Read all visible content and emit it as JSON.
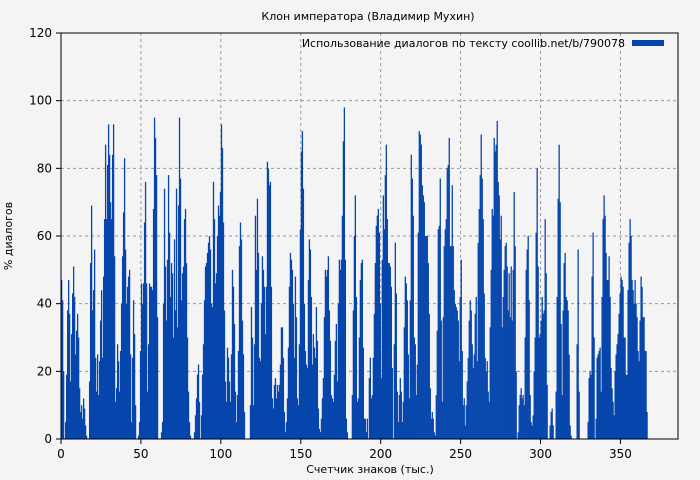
{
  "chart_data": {
    "type": "bar",
    "title": "Клон императора (Владимир Мухин)",
    "xlabel": "Счетчик знаков (тыс.)",
    "ylabel": "% диалогов",
    "xlim": [
      0,
      386
    ],
    "ylim": [
      0,
      120
    ],
    "x_step": 0.625,
    "xticks": [
      0,
      50,
      100,
      150,
      200,
      250,
      300,
      350
    ],
    "yticks": [
      0,
      20,
      40,
      60,
      80,
      100,
      120
    ],
    "grid": true,
    "legend_position": "top-right",
    "series": [
      {
        "name": "Использование диалогов по тексту coollib.net/b/790078",
        "color": "#0646ac",
        "values": [
          47,
          41,
          20,
          0,
          5,
          19,
          38,
          47,
          37,
          17,
          31,
          43,
          51,
          42,
          25,
          32,
          37,
          30,
          15,
          8,
          10,
          6,
          12,
          9,
          4,
          1,
          0,
          0,
          17,
          52,
          69,
          38,
          44,
          56,
          24,
          14,
          25,
          13,
          23,
          35,
          44,
          24,
          48,
          65,
          87,
          65,
          81,
          93,
          84,
          70,
          65,
          84,
          93,
          54,
          11,
          15,
          28,
          23,
          14,
          26,
          40,
          54,
          67,
          83,
          56,
          40,
          45,
          48,
          50,
          25,
          5,
          24,
          41,
          31,
          10,
          0,
          0,
          1,
          5,
          26,
          46,
          40,
          46,
          64,
          76,
          46,
          14,
          28,
          46,
          45,
          45,
          44,
          68,
          95,
          89,
          78,
          36,
          0,
          0,
          0,
          2,
          5,
          40,
          74,
          51,
          35,
          53,
          78,
          61,
          42,
          52,
          49,
          30,
          59,
          38,
          74,
          33,
          69,
          95,
          77,
          41,
          49,
          51,
          65,
          68,
          52,
          30,
          14,
          5,
          1,
          0,
          0,
          0,
          2,
          7,
          12,
          19,
          22,
          11,
          0,
          7,
          19,
          28,
          41,
          51,
          52,
          55,
          58,
          60,
          56,
          40,
          39,
          76,
          65,
          46,
          49,
          60,
          69,
          66,
          73,
          93,
          86,
          64,
          38,
          17,
          11,
          27,
          24,
          17,
          11,
          25,
          50,
          45,
          34,
          14,
          5,
          13,
          26,
          57,
          64,
          59,
          35,
          25,
          8,
          0,
          0,
          0,
          0,
          0,
          10,
          39,
          30,
          10,
          28,
          66,
          50,
          71,
          55,
          24,
          23,
          40,
          54,
          50,
          45,
          31,
          45,
          82,
          80,
          75,
          76,
          45,
          12,
          9,
          16,
          18,
          12,
          16,
          14,
          16,
          22,
          33,
          33,
          24,
          8,
          2,
          5,
          12,
          27,
          45,
          55,
          53,
          50,
          40,
          24,
          48,
          36,
          12,
          10,
          28,
          62,
          85,
          91,
          74,
          40,
          26,
          22,
          21,
          47,
          59,
          56,
          42,
          22,
          31,
          27,
          24,
          39,
          29,
          9,
          3,
          2,
          6,
          12,
          18,
          36,
          50,
          48,
          50,
          54,
          38,
          29,
          13,
          12,
          11,
          19,
          29,
          34,
          17,
          40,
          53,
          50,
          53,
          66,
          88,
          98,
          53,
          6,
          2,
          0,
          0,
          0,
          0,
          13,
          38,
          60,
          72,
          42,
          11,
          12,
          30,
          47,
          52,
          53,
          27,
          6,
          6,
          2,
          6,
          0,
          18,
          24,
          12,
          13,
          24,
          37,
          52,
          63,
          66,
          68,
          61,
          40,
          18,
          53,
          72,
          62,
          78,
          87,
          65,
          52,
          52,
          51,
          45,
          21,
          0,
          28,
          58,
          43,
          14,
          5,
          13,
          18,
          14,
          5,
          11,
          33,
          48,
          46,
          41,
          25,
          12,
          41,
          84,
          77,
          66,
          30,
          28,
          13,
          22,
          61,
          91,
          90,
          87,
          75,
          72,
          70,
          60,
          60,
          60,
          52,
          37,
          15,
          6,
          8,
          6,
          2,
          1,
          13,
          32,
          62,
          63,
          77,
          35,
          11,
          36,
          57,
          62,
          65,
          80,
          81,
          89,
          57,
          57,
          75,
          57,
          44,
          40,
          39,
          38,
          35,
          23,
          42,
          53,
          26,
          10,
          12,
          4,
          10,
          17,
          24,
          35,
          41,
          38,
          28,
          21,
          25,
          37,
          42,
          23,
          58,
          68,
          78,
          90,
          77,
          65,
          43,
          24,
          20,
          23,
          14,
          11,
          33,
          50,
          68,
          66,
          89,
          85,
          87,
          94,
          76,
          72,
          59,
          66,
          33,
          42,
          50,
          57,
          58,
          51,
          38,
          49,
          36,
          51,
          35,
          50,
          73,
          57,
          20,
          0,
          2,
          10,
          13,
          15,
          12,
          13,
          10,
          30,
          50,
          56,
          60,
          41,
          13,
          5,
          4,
          7,
          20,
          30,
          61,
          80,
          51,
          30,
          31,
          35,
          42,
          37,
          38,
          65,
          49,
          16,
          0,
          0,
          4,
          8,
          9,
          4,
          0,
          0,
          14,
          42,
          71,
          87,
          70,
          34,
          13,
          38,
          52,
          55,
          42,
          41,
          38,
          25,
          4,
          1,
          0,
          0,
          0,
          0,
          0,
          28,
          56,
          14,
          0,
          0,
          0,
          0,
          0,
          0,
          0,
          0,
          5,
          18,
          20,
          19,
          48,
          61,
          30,
          0,
          6,
          24,
          25,
          26,
          27,
          14,
          42,
          65,
          72,
          66,
          55,
          47,
          47,
          54,
          42,
          21,
          15,
          11,
          7,
          20,
          25,
          28,
          31,
          37,
          43,
          48,
          47,
          45,
          30,
          30,
          19,
          19,
          44,
          58,
          65,
          60,
          47,
          44,
          40,
          47,
          40,
          36,
          26,
          23,
          35,
          48,
          45,
          36,
          36,
          26,
          26,
          8
        ]
      }
    ]
  }
}
